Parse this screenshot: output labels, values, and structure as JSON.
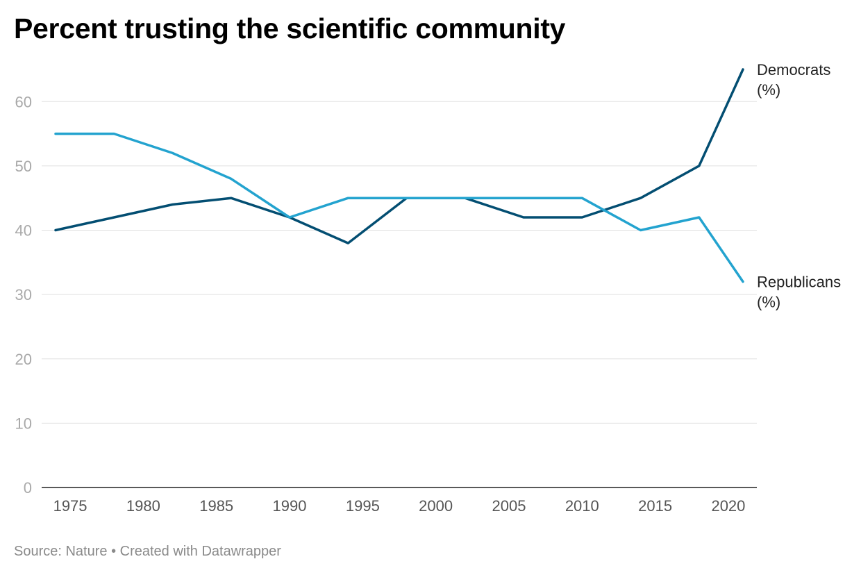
{
  "title": "Percent trusting the scientific community",
  "footer": "Source: Nature • Created with Datawrapper",
  "colors": {
    "democrats": "#034e72",
    "republicans": "#23a3cf",
    "grid": "#e0e0e0",
    "axis": "#222222",
    "y_tick_text": "#a9a9a9",
    "x_tick_text": "#555555"
  },
  "chart_data": {
    "type": "line",
    "title": "Percent trusting the scientific community",
    "xlabel": "",
    "ylabel": "",
    "xlim": [
      1974,
      2021
    ],
    "ylim": [
      0,
      65
    ],
    "y_ticks": [
      0,
      10,
      20,
      30,
      40,
      50,
      60
    ],
    "x_ticks": [
      1975,
      1980,
      1985,
      1990,
      1995,
      2000,
      2005,
      2010,
      2015,
      2020
    ],
    "grid": true,
    "legend": "direct labels at line ends (right)",
    "series": [
      {
        "name": "Democrats (%)",
        "label_lines": [
          "Democrats",
          "(%)"
        ],
        "color_key": "democrats",
        "x": [
          1974,
          1978,
          1982,
          1986,
          1990,
          1994,
          1998,
          2002,
          2006,
          2010,
          2014,
          2018,
          2021
        ],
        "values": [
          40,
          42,
          44,
          45,
          42,
          38,
          45,
          45,
          42,
          42,
          45,
          50,
          65
        ]
      },
      {
        "name": "Republicans (%)",
        "label_lines": [
          "Republicans",
          "(%)"
        ],
        "color_key": "republicans",
        "x": [
          1974,
          1978,
          1982,
          1986,
          1990,
          1994,
          1998,
          2002,
          2006,
          2010,
          2014,
          2018,
          2021
        ],
        "values": [
          55,
          55,
          52,
          48,
          42,
          45,
          45,
          45,
          45,
          45,
          40,
          42,
          32
        ]
      }
    ]
  }
}
